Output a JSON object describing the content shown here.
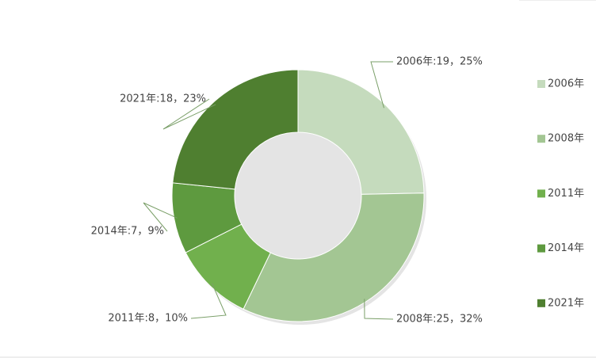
{
  "chart_data": {
    "type": "donut",
    "categories": [
      "2006年",
      "2008年",
      "2011年",
      "2014年",
      "2021年"
    ],
    "values": [
      19,
      25,
      8,
      7,
      18
    ],
    "value_labels": [
      "2006年:19，25%",
      "2008年:25，32%",
      "2011年:8，10%",
      "2014年:7，9%",
      "2021年:18，23%"
    ],
    "colors": [
      "#c5dbbd",
      "#a3c693",
      "#71b04d",
      "#5e9a3f",
      "#4f7f30"
    ],
    "legend": "right"
  }
}
